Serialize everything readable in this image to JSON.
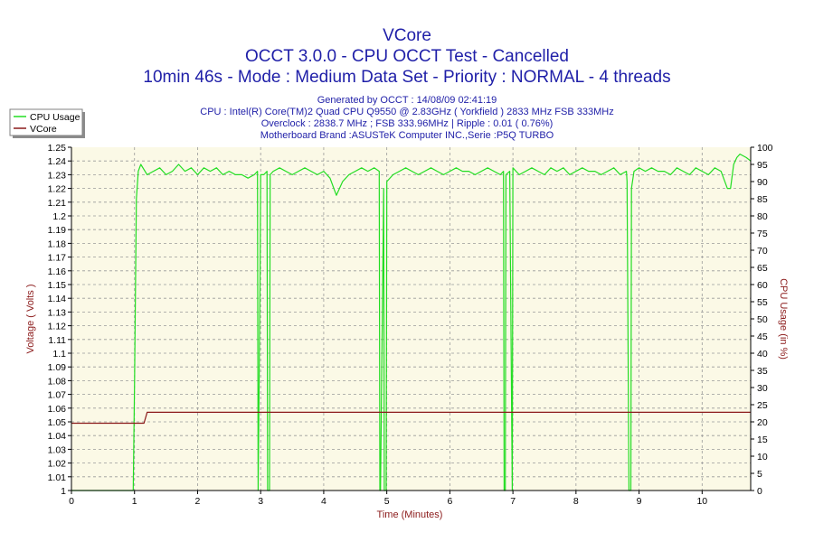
{
  "titles": {
    "line1": "VCore",
    "line2": "OCCT 3.0.0 - CPU OCCT Test - Cancelled",
    "line3": "10min 46s - Mode : Medium Data Set - Priority : NORMAL - 4 threads"
  },
  "info": {
    "generated": "Generated by OCCT : 14/08/09 02:41:19",
    "cpu": "CPU : Intel(R) Core(TM)2 Quad CPU Q9550 @ 2.83GHz ( Yorkfield ) 2833 MHz FSB 333MHz",
    "overclock": "Overclock : 2838.7 MHz ; FSB 333.96MHz | Ripple : 0.01 ( 0.76%)",
    "motherboard": "Motherboard Brand :ASUSTeK Computer INC.,Serie :P5Q TURBO"
  },
  "colors": {
    "cpu_usage": "#22dd22",
    "vcore": "#8b1a1a",
    "plot_bg": "#fbf9e6",
    "title": "#1f1fa8",
    "axis_title": "#8b1a1a"
  },
  "chart_data": {
    "type": "line",
    "xlabel": "Time (Minutes)",
    "ylabel_left": "Voltage ( Volts )",
    "ylabel_right": "CPU Usage (in %)",
    "xlim": [
      0,
      10.77
    ],
    "ylim_left": [
      1.0,
      1.25
    ],
    "ylim_right": [
      0,
      100
    ],
    "x_ticks": [
      "0",
      "1",
      "2",
      "3",
      "4",
      "5",
      "6",
      "7",
      "8",
      "9",
      "10"
    ],
    "y_left_ticks": [
      "1",
      "1.01",
      "1.02",
      "1.03",
      "1.04",
      "1.05",
      "1.06",
      "1.07",
      "1.08",
      "1.09",
      "1.1",
      "1.11",
      "1.12",
      "1.13",
      "1.14",
      "1.15",
      "1.16",
      "1.17",
      "1.18",
      "1.19",
      "1.2",
      "1.21",
      "1.22",
      "1.23",
      "1.24",
      "1.25"
    ],
    "y_right_ticks": [
      "0",
      "5",
      "10",
      "15",
      "20",
      "25",
      "30",
      "35",
      "40",
      "45",
      "50",
      "55",
      "60",
      "65",
      "70",
      "75",
      "80",
      "85",
      "90",
      "95",
      "100"
    ],
    "grid": true,
    "legend_position": "top-left",
    "series": [
      {
        "name": "CPU Usage",
        "axis": "right",
        "x": [
          0,
          0.98,
          1.0,
          1.03,
          1.06,
          1.1,
          1.2,
          1.3,
          1.4,
          1.5,
          1.6,
          1.7,
          1.8,
          1.9,
          2.0,
          2.1,
          2.2,
          2.3,
          2.4,
          2.5,
          2.6,
          2.7,
          2.8,
          2.9,
          2.95,
          2.96,
          2.99,
          3.0,
          3.05,
          3.1,
          3.11,
          3.14,
          3.15,
          3.2,
          3.3,
          3.4,
          3.5,
          3.6,
          3.7,
          3.8,
          3.9,
          4.0,
          4.1,
          4.2,
          4.3,
          4.4,
          4.5,
          4.6,
          4.7,
          4.8,
          4.88,
          4.89,
          4.9,
          4.95,
          4.96,
          4.99,
          5.0,
          5.1,
          5.2,
          5.3,
          5.4,
          5.5,
          5.6,
          5.7,
          5.8,
          5.9,
          6.0,
          6.1,
          6.2,
          6.3,
          6.4,
          6.5,
          6.6,
          6.7,
          6.8,
          6.85,
          6.86,
          6.88,
          6.89,
          6.95,
          6.99,
          7.0,
          7.05,
          7.1,
          7.2,
          7.3,
          7.4,
          7.5,
          7.6,
          7.7,
          7.8,
          7.9,
          8.0,
          8.1,
          8.2,
          8.3,
          8.4,
          8.5,
          8.6,
          8.7,
          8.8,
          8.81,
          8.84,
          8.87,
          8.88,
          8.92,
          9.0,
          9.1,
          9.2,
          9.3,
          9.4,
          9.5,
          9.6,
          9.7,
          9.8,
          9.9,
          10.0,
          10.1,
          10.2,
          10.3,
          10.4,
          10.45,
          10.5,
          10.55,
          10.6,
          10.7,
          10.77
        ],
        "values": [
          0,
          0,
          30,
          85,
          93,
          95,
          92,
          93,
          94,
          92,
          93,
          95,
          93,
          94,
          92,
          94,
          93,
          94,
          92,
          93,
          92,
          92,
          91,
          92,
          93,
          0,
          60,
          92,
          92,
          93,
          0,
          0,
          92,
          93,
          94,
          93,
          92,
          93,
          94,
          93,
          92,
          93,
          91,
          86,
          90,
          92,
          93,
          94,
          93,
          94,
          93,
          0,
          0,
          88,
          0,
          0,
          90,
          92,
          93,
          94,
          93,
          92,
          93,
          94,
          93,
          92,
          93,
          94,
          93,
          93,
          92,
          93,
          94,
          93,
          92,
          93,
          0,
          0,
          92,
          93,
          0,
          94,
          93,
          92,
          93,
          94,
          93,
          92,
          94,
          93,
          94,
          92,
          93,
          94,
          93,
          93,
          92,
          93,
          94,
          92,
          93,
          90,
          0,
          0,
          88,
          93,
          94,
          93,
          94,
          93,
          93,
          92,
          94,
          93,
          92,
          94,
          93,
          92,
          94,
          93,
          88,
          88,
          95,
          97,
          98,
          97,
          96
        ]
      },
      {
        "name": "VCore",
        "axis": "left",
        "x": [
          0,
          1.15,
          1.2,
          10.77
        ],
        "values": [
          1.049,
          1.049,
          1.057,
          1.057
        ]
      }
    ]
  }
}
